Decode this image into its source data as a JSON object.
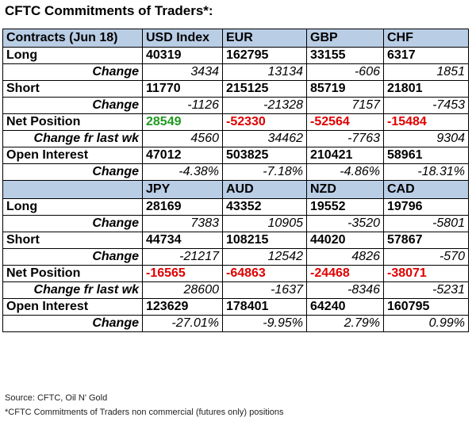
{
  "title": "CFTC Commitments of Traders*:",
  "table1": {
    "header": [
      "Contracts (Jun 18)",
      "USD Index",
      "EUR",
      "GBP",
      "CHF"
    ],
    "rows": [
      {
        "label": "Long",
        "type": "value",
        "cells": [
          "40319",
          "162795",
          "33155",
          "6317"
        ]
      },
      {
        "label": "Change",
        "type": "change",
        "cells": [
          "3434",
          "13134",
          "-606",
          "1851"
        ]
      },
      {
        "label": "Short",
        "type": "value",
        "cells": [
          "11770",
          "215125",
          "85719",
          "21801"
        ]
      },
      {
        "label": "Change",
        "type": "change",
        "cells": [
          "-1126",
          "-21328",
          "7157",
          "-7453"
        ]
      },
      {
        "label": "Net Position",
        "type": "net",
        "cells": [
          "28549",
          "-52330",
          "-52564",
          "-15484"
        ]
      },
      {
        "label": "Change fr last wk",
        "type": "change",
        "cells": [
          "4560",
          "34462",
          "-7763",
          "9304"
        ]
      },
      {
        "label": "Open Interest",
        "type": "value",
        "cells": [
          "47012",
          "503825",
          "210421",
          "58961"
        ]
      },
      {
        "label": "Change",
        "type": "change",
        "cells": [
          "-4.38%",
          "-7.18%",
          "-4.86%",
          "-18.31%"
        ]
      }
    ]
  },
  "table2": {
    "header": [
      "",
      "JPY",
      "AUD",
      "NZD",
      "CAD"
    ],
    "rows": [
      {
        "label": "Long",
        "type": "value",
        "cells": [
          "28169",
          "43352",
          "19552",
          "19796"
        ]
      },
      {
        "label": "Change",
        "type": "change",
        "cells": [
          "7383",
          "10905",
          "-3520",
          "-5801"
        ]
      },
      {
        "label": "Short",
        "type": "value",
        "cells": [
          "44734",
          "108215",
          "44020",
          "57867"
        ]
      },
      {
        "label": "Change",
        "type": "change",
        "cells": [
          "-21217",
          "12542",
          "4826",
          "-570"
        ]
      },
      {
        "label": "Net Position",
        "type": "net",
        "cells": [
          "-16565",
          "-64863",
          "-24468",
          "-38071"
        ]
      },
      {
        "label": "Change fr last wk",
        "type": "change",
        "cells": [
          "28600",
          "-1637",
          "-8346",
          "-5231"
        ]
      },
      {
        "label": "Open Interest",
        "type": "value",
        "cells": [
          "123629",
          "178401",
          "64240",
          "160795"
        ]
      },
      {
        "label": "Change",
        "type": "change",
        "cells": [
          "-27.01%",
          "-9.95%",
          "2.79%",
          "0.99%"
        ]
      }
    ]
  },
  "colors": {
    "header_bg": "#b9cde5",
    "positive": "#1e9a1e",
    "negative": "#e00000"
  },
  "footer": {
    "source": "Source: CFTC, Oil N' Gold",
    "note": "*CFTC Commitments of Traders non commercial (futures only) positions"
  }
}
